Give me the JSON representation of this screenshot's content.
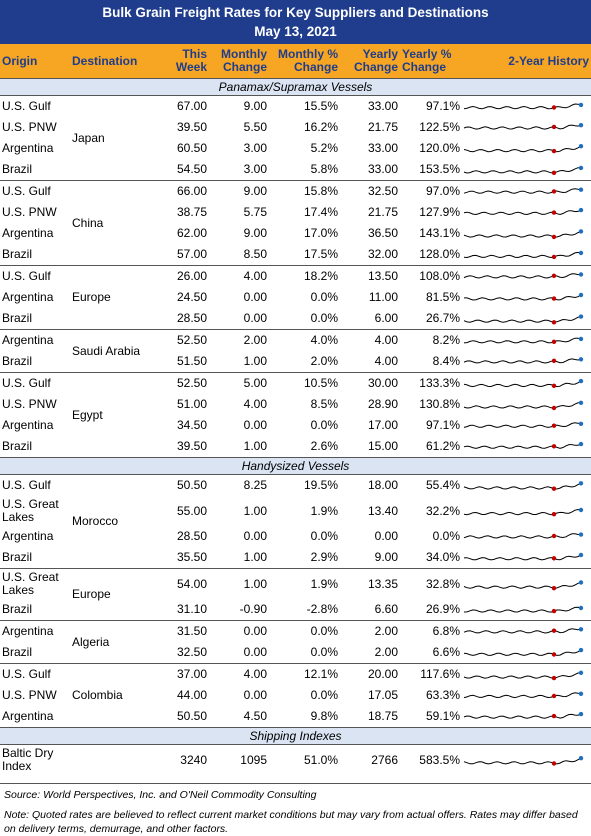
{
  "header": {
    "title": "Bulk Grain Freight Rates for Key Suppliers and Destinations",
    "subtitle": "May 13, 2021"
  },
  "columns": [
    "Origin",
    "Destination",
    "This Week",
    "Monthly Change",
    "Monthly % Change",
    "Yearly Change",
    "Yearly % Change",
    "2-Year History"
  ],
  "sections": [
    {
      "label": "Panamax/Supramax Vessels",
      "groups": [
        {
          "destination": "Japan",
          "rows": [
            [
              "U.S. Gulf",
              "67.00",
              "9.00",
              "15.5%",
              "33.00",
              "97.1%"
            ],
            [
              "U.S. PNW",
              "39.50",
              "5.50",
              "16.2%",
              "21.75",
              "122.5%"
            ],
            [
              "Argentina",
              "60.50",
              "3.00",
              "5.2%",
              "33.00",
              "120.0%"
            ],
            [
              "Brazil",
              "54.50",
              "3.00",
              "5.8%",
              "33.00",
              "153.5%"
            ]
          ]
        },
        {
          "destination": "China",
          "rows": [
            [
              "U.S. Gulf",
              "66.00",
              "9.00",
              "15.8%",
              "32.50",
              "97.0%"
            ],
            [
              "U.S. PNW",
              "38.75",
              "5.75",
              "17.4%",
              "21.75",
              "127.9%"
            ],
            [
              "Argentina",
              "62.00",
              "9.00",
              "17.0%",
              "36.50",
              "143.1%"
            ],
            [
              "Brazil",
              "57.00",
              "8.50",
              "17.5%",
              "32.00",
              "128.0%"
            ]
          ]
        },
        {
          "destination": "Europe",
          "rows": [
            [
              "U.S. Gulf",
              "26.00",
              "4.00",
              "18.2%",
              "13.50",
              "108.0%"
            ],
            [
              "Argentina",
              "24.50",
              "0.00",
              "0.0%",
              "11.00",
              "81.5%"
            ],
            [
              "Brazil",
              "28.50",
              "0.00",
              "0.0%",
              "6.00",
              "26.7%"
            ]
          ]
        },
        {
          "destination": "Saudi Arabia",
          "rows": [
            [
              "Argentina",
              "52.50",
              "2.00",
              "4.0%",
              "4.00",
              "8.2%"
            ],
            [
              "Brazil",
              "51.50",
              "1.00",
              "2.0%",
              "4.00",
              "8.4%"
            ]
          ]
        },
        {
          "destination": "Egypt",
          "rows": [
            [
              "U.S. Gulf",
              "52.50",
              "5.00",
              "10.5%",
              "30.00",
              "133.3%"
            ],
            [
              "U.S. PNW",
              "51.00",
              "4.00",
              "8.5%",
              "28.90",
              "130.8%"
            ],
            [
              "Argentina",
              "34.50",
              "0.00",
              "0.0%",
              "17.00",
              "97.1%"
            ],
            [
              "Brazil",
              "39.50",
              "1.00",
              "2.6%",
              "15.00",
              "61.2%"
            ]
          ]
        }
      ]
    },
    {
      "label": "Handysized Vessels",
      "groups": [
        {
          "destination": "Morocco",
          "rows": [
            [
              "U.S. Gulf",
              "50.50",
              "8.25",
              "19.5%",
              "18.00",
              "55.4%"
            ],
            [
              "U.S. Great Lakes",
              "55.00",
              "1.00",
              "1.9%",
              "13.40",
              "32.2%"
            ],
            [
              "Argentina",
              "28.50",
              "0.00",
              "0.0%",
              "0.00",
              "0.0%"
            ],
            [
              "Brazil",
              "35.50",
              "1.00",
              "2.9%",
              "9.00",
              "34.0%"
            ]
          ]
        },
        {
          "destination": "Europe",
          "rows": [
            [
              "U.S. Great Lakes",
              "54.00",
              "1.00",
              "1.9%",
              "13.35",
              "32.8%"
            ],
            [
              "Brazil",
              "31.10",
              "-0.90",
              "-2.8%",
              "6.60",
              "26.9%"
            ]
          ]
        },
        {
          "destination": "Algeria",
          "rows": [
            [
              "Argentina",
              "31.50",
              "0.00",
              "0.0%",
              "2.00",
              "6.8%"
            ],
            [
              "Brazil",
              "32.50",
              "0.00",
              "0.0%",
              "2.00",
              "6.6%"
            ]
          ]
        },
        {
          "destination": "Colombia",
          "rows": [
            [
              "U.S. Gulf",
              "37.00",
              "4.00",
              "12.1%",
              "20.00",
              "117.6%"
            ],
            [
              "U.S. PNW",
              "44.00",
              "0.00",
              "0.0%",
              "17.05",
              "63.3%"
            ],
            [
              "Argentina",
              "50.50",
              "4.50",
              "9.8%",
              "18.75",
              "59.1%"
            ]
          ]
        }
      ]
    },
    {
      "label": "Shipping Indexes",
      "groups": [
        {
          "destination": "",
          "rows": [
            [
              "Baltic Dry Index",
              "3240",
              "1095",
              "51.0%",
              "2766",
              "583.5%"
            ]
          ]
        }
      ]
    }
  ],
  "footer": {
    "source": "Source: World Perspectives, Inc. and O'Neil Commodity Consulting",
    "note": "Note: Quoted rates are believed to reflect current market conditions but may vary from actual offers. Rates may differ based on delivery terms, demurrage, and other factors."
  }
}
